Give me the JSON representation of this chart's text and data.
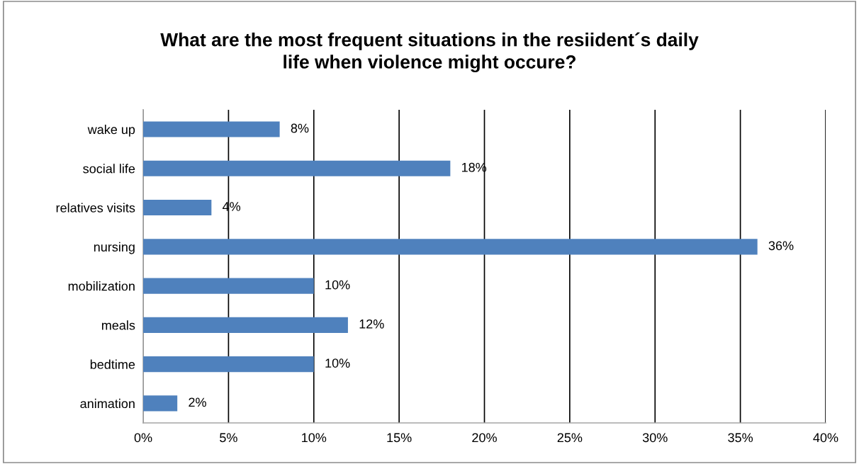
{
  "chart_data": {
    "type": "bar",
    "orientation": "horizontal",
    "title": "What are the most frequent situations in the resiident´s daily\nlife when violence might occure?",
    "categories": [
      "wake up",
      "social life",
      "relatives visits",
      "nursing",
      "mobilization",
      "meals",
      "bedtime",
      "animation"
    ],
    "values": [
      8,
      18,
      4,
      36,
      10,
      12,
      10,
      2
    ],
    "value_labels": [
      "8%",
      "18%",
      "4%",
      "36%",
      "10%",
      "12%",
      "10%",
      "2%"
    ],
    "color": "#4f81bd",
    "xlim": [
      0,
      40
    ],
    "xticks": [
      {
        "value": 0,
        "label": "0%"
      },
      {
        "value": 5,
        "label": "5%"
      },
      {
        "value": 10,
        "label": "10%"
      },
      {
        "value": 15,
        "label": "15%"
      },
      {
        "value": 20,
        "label": "20%"
      },
      {
        "value": 25,
        "label": "25%"
      },
      {
        "value": 30,
        "label": "30%"
      },
      {
        "value": 35,
        "label": "35%"
      },
      {
        "value": 40,
        "label": "40%"
      }
    ],
    "grid": "x"
  }
}
